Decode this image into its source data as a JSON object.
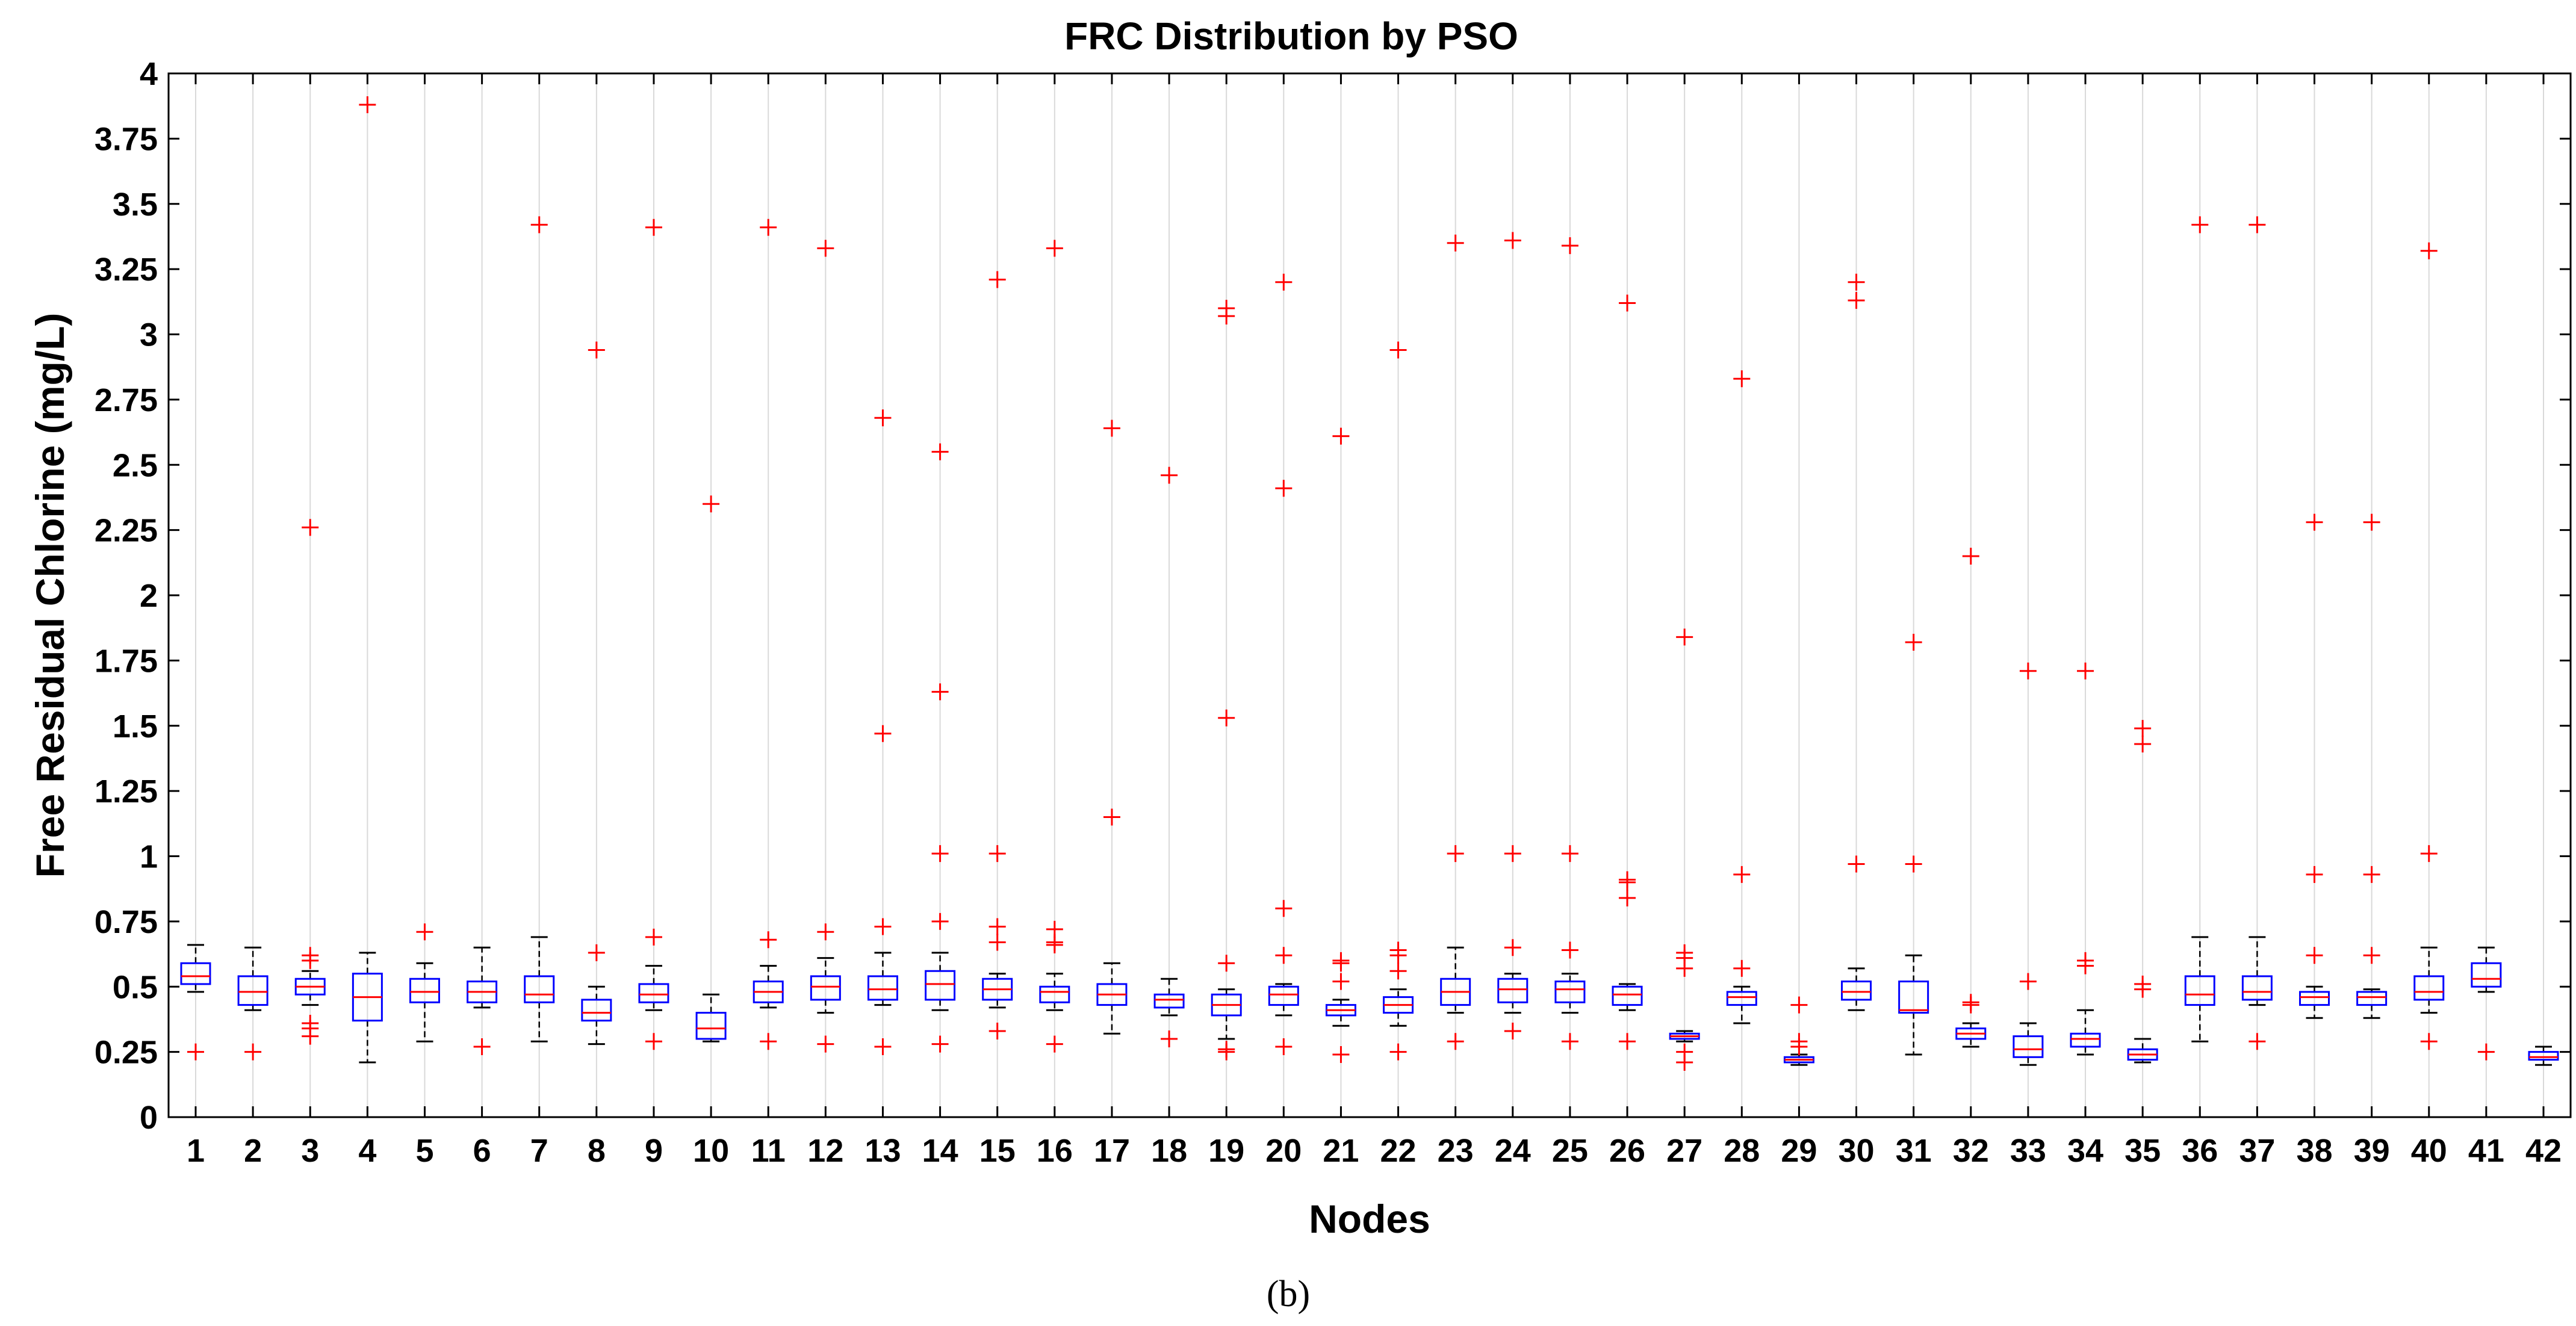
{
  "chart_data": {
    "type": "box",
    "title": "FRC Distribution by PSO",
    "xlabel": "Nodes",
    "ylabel": "Free Residual Chlorine (mg/L)",
    "ylim": [
      0,
      4
    ],
    "yticks": [
      0,
      0.25,
      0.5,
      0.75,
      1,
      1.25,
      1.5,
      1.75,
      2,
      2.25,
      2.5,
      2.75,
      3,
      3.25,
      3.5,
      3.75,
      4
    ],
    "ytick_labels": [
      "0",
      "0.25",
      "0.5",
      "0.75",
      "1",
      "1.25",
      "1.5",
      "1.75",
      "2",
      "2.25",
      "2.5",
      "2.75",
      "3",
      "3.25",
      "3.5",
      "3.75",
      "4"
    ],
    "grid": "x",
    "caption": "(b)",
    "colors": {
      "box": "#0000ff",
      "median": "#ff0000",
      "whisker": "#000000",
      "outlier": "#ff0000",
      "grid": "#d9d9d9"
    },
    "categories": [
      "1",
      "2",
      "3",
      "4",
      "5",
      "6",
      "7",
      "8",
      "9",
      "10",
      "11",
      "12",
      "13",
      "14",
      "15",
      "16",
      "17",
      "18",
      "19",
      "20",
      "21",
      "22",
      "23",
      "24",
      "25",
      "26",
      "27",
      "28",
      "29",
      "30",
      "31",
      "32",
      "33",
      "34",
      "35",
      "36",
      "37",
      "38",
      "39",
      "40",
      "41",
      "42"
    ],
    "boxes": [
      {
        "node": "1",
        "whislo": 0.48,
        "q1": 0.51,
        "med": 0.54,
        "q3": 0.59,
        "whishi": 0.66,
        "fliers": [
          0.25
        ]
      },
      {
        "node": "2",
        "whislo": 0.41,
        "q1": 0.43,
        "med": 0.48,
        "q3": 0.54,
        "whishi": 0.65,
        "fliers": [
          0.25
        ]
      },
      {
        "node": "3",
        "whislo": 0.43,
        "q1": 0.47,
        "med": 0.5,
        "q3": 0.53,
        "whishi": 0.56,
        "fliers": [
          0.36,
          0.34,
          0.31,
          0.6,
          0.62,
          2.26
        ]
      },
      {
        "node": "4",
        "whislo": 0.21,
        "q1": 0.37,
        "med": 0.46,
        "q3": 0.55,
        "whishi": 0.63,
        "fliers": [
          3.88
        ]
      },
      {
        "node": "5",
        "whislo": 0.29,
        "q1": 0.44,
        "med": 0.48,
        "q3": 0.53,
        "whishi": 0.59,
        "fliers": [
          0.71
        ]
      },
      {
        "node": "6",
        "whislo": 0.42,
        "q1": 0.44,
        "med": 0.48,
        "q3": 0.52,
        "whishi": 0.65,
        "fliers": [
          0.27
        ]
      },
      {
        "node": "7",
        "whislo": 0.29,
        "q1": 0.44,
        "med": 0.47,
        "q3": 0.54,
        "whishi": 0.69,
        "fliers": [
          3.42
        ]
      },
      {
        "node": "8",
        "whislo": 0.28,
        "q1": 0.37,
        "med": 0.4,
        "q3": 0.45,
        "whishi": 0.5,
        "fliers": [
          0.63,
          2.94
        ]
      },
      {
        "node": "9",
        "whislo": 0.41,
        "q1": 0.44,
        "med": 0.47,
        "q3": 0.51,
        "whishi": 0.58,
        "fliers": [
          0.29,
          0.69,
          3.41
        ]
      },
      {
        "node": "10",
        "whislo": 0.29,
        "q1": 0.3,
        "med": 0.34,
        "q3": 0.4,
        "whishi": 0.47,
        "fliers": [
          2.35
        ]
      },
      {
        "node": "11",
        "whislo": 0.42,
        "q1": 0.44,
        "med": 0.48,
        "q3": 0.52,
        "whishi": 0.58,
        "fliers": [
          0.29,
          0.68,
          3.41
        ]
      },
      {
        "node": "12",
        "whislo": 0.4,
        "q1": 0.45,
        "med": 0.5,
        "q3": 0.54,
        "whishi": 0.61,
        "fliers": [
          0.28,
          0.71,
          3.33
        ]
      },
      {
        "node": "13",
        "whislo": 0.43,
        "q1": 0.45,
        "med": 0.49,
        "q3": 0.54,
        "whishi": 0.63,
        "fliers": [
          0.27,
          0.73,
          1.47,
          2.68
        ]
      },
      {
        "node": "14",
        "whislo": 0.41,
        "q1": 0.45,
        "med": 0.51,
        "q3": 0.56,
        "whishi": 0.63,
        "fliers": [
          0.28,
          0.75,
          1.01,
          1.63,
          2.55
        ]
      },
      {
        "node": "15",
        "whislo": 0.42,
        "q1": 0.45,
        "med": 0.49,
        "q3": 0.53,
        "whishi": 0.55,
        "fliers": [
          0.33,
          0.67,
          0.73,
          1.01,
          3.21
        ]
      },
      {
        "node": "16",
        "whislo": 0.41,
        "q1": 0.44,
        "med": 0.48,
        "q3": 0.5,
        "whishi": 0.55,
        "fliers": [
          0.28,
          0.66,
          0.67,
          0.72,
          3.33
        ]
      },
      {
        "node": "17",
        "whislo": 0.32,
        "q1": 0.43,
        "med": 0.47,
        "q3": 0.51,
        "whishi": 0.59,
        "fliers": [
          1.15,
          2.64
        ]
      },
      {
        "node": "18",
        "whislo": 0.39,
        "q1": 0.42,
        "med": 0.45,
        "q3": 0.47,
        "whishi": 0.53,
        "fliers": [
          0.3,
          2.46
        ]
      },
      {
        "node": "19",
        "whislo": 0.3,
        "q1": 0.39,
        "med": 0.43,
        "q3": 0.47,
        "whishi": 0.49,
        "fliers": [
          0.25,
          0.26,
          0.59,
          1.53,
          3.07,
          3.1
        ]
      },
      {
        "node": "20",
        "whislo": 0.39,
        "q1": 0.43,
        "med": 0.47,
        "q3": 0.5,
        "whishi": 0.51,
        "fliers": [
          0.27,
          0.62,
          0.8,
          2.41,
          3.2
        ]
      },
      {
        "node": "21",
        "whislo": 0.35,
        "q1": 0.39,
        "med": 0.41,
        "q3": 0.43,
        "whishi": 0.45,
        "fliers": [
          0.24,
          0.52,
          0.59,
          0.6,
          2.61
        ]
      },
      {
        "node": "22",
        "whislo": 0.35,
        "q1": 0.4,
        "med": 0.43,
        "q3": 0.46,
        "whishi": 0.49,
        "fliers": [
          0.25,
          0.56,
          0.62,
          0.64,
          2.94
        ]
      },
      {
        "node": "23",
        "whislo": 0.4,
        "q1": 0.43,
        "med": 0.48,
        "q3": 0.53,
        "whishi": 0.65,
        "fliers": [
          0.29,
          1.01,
          3.35
        ]
      },
      {
        "node": "24",
        "whislo": 0.4,
        "q1": 0.44,
        "med": 0.49,
        "q3": 0.53,
        "whishi": 0.55,
        "fliers": [
          0.33,
          0.65,
          1.01,
          3.36
        ]
      },
      {
        "node": "25",
        "whislo": 0.4,
        "q1": 0.44,
        "med": 0.49,
        "q3": 0.52,
        "whishi": 0.55,
        "fliers": [
          0.29,
          0.64,
          1.01,
          3.34
        ]
      },
      {
        "node": "26",
        "whislo": 0.41,
        "q1": 0.43,
        "med": 0.47,
        "q3": 0.5,
        "whishi": 0.51,
        "fliers": [
          0.29,
          0.84,
          0.9,
          0.91,
          3.12
        ]
      },
      {
        "node": "27",
        "whislo": 0.29,
        "q1": 0.3,
        "med": 0.31,
        "q3": 0.32,
        "whishi": 0.33,
        "fliers": [
          0.21,
          0.25,
          0.57,
          0.61,
          0.63,
          1.84
        ]
      },
      {
        "node": "28",
        "whislo": 0.36,
        "q1": 0.43,
        "med": 0.46,
        "q3": 0.48,
        "whishi": 0.5,
        "fliers": [
          0.57,
          0.93,
          2.83
        ]
      },
      {
        "node": "29",
        "whislo": 0.2,
        "q1": 0.21,
        "med": 0.22,
        "q3": 0.23,
        "whishi": 0.24,
        "fliers": [
          0.27,
          0.29,
          0.43
        ]
      },
      {
        "node": "30",
        "whislo": 0.41,
        "q1": 0.45,
        "med": 0.48,
        "q3": 0.52,
        "whishi": 0.57,
        "fliers": [
          0.97,
          3.13,
          3.2
        ]
      },
      {
        "node": "31",
        "whislo": 0.24,
        "q1": 0.4,
        "med": 0.41,
        "q3": 0.52,
        "whishi": 0.62,
        "fliers": [
          0.97,
          1.82
        ]
      },
      {
        "node": "32",
        "whislo": 0.27,
        "q1": 0.3,
        "med": 0.32,
        "q3": 0.34,
        "whishi": 0.36,
        "fliers": [
          0.43,
          0.44,
          2.15
        ]
      },
      {
        "node": "33",
        "whislo": 0.2,
        "q1": 0.23,
        "med": 0.26,
        "q3": 0.31,
        "whishi": 0.36,
        "fliers": [
          0.52,
          1.71
        ]
      },
      {
        "node": "34",
        "whislo": 0.24,
        "q1": 0.27,
        "med": 0.3,
        "q3": 0.32,
        "whishi": 0.41,
        "fliers": [
          0.58,
          0.6,
          1.71
        ]
      },
      {
        "node": "35",
        "whislo": 0.21,
        "q1": 0.22,
        "med": 0.24,
        "q3": 0.26,
        "whishi": 0.3,
        "fliers": [
          0.49,
          0.51,
          1.43,
          1.49
        ]
      },
      {
        "node": "36",
        "whislo": 0.29,
        "q1": 0.43,
        "med": 0.47,
        "q3": 0.54,
        "whishi": 0.69,
        "fliers": [
          3.42
        ]
      },
      {
        "node": "37",
        "whislo": 0.43,
        "q1": 0.45,
        "med": 0.48,
        "q3": 0.54,
        "whishi": 0.69,
        "fliers": [
          0.29,
          3.42
        ]
      },
      {
        "node": "38",
        "whislo": 0.38,
        "q1": 0.43,
        "med": 0.46,
        "q3": 0.48,
        "whishi": 0.5,
        "fliers": [
          0.62,
          0.93,
          2.28
        ]
      },
      {
        "node": "39",
        "whislo": 0.38,
        "q1": 0.43,
        "med": 0.46,
        "q3": 0.48,
        "whishi": 0.49,
        "fliers": [
          0.62,
          0.93,
          2.28
        ]
      },
      {
        "node": "40",
        "whislo": 0.4,
        "q1": 0.45,
        "med": 0.48,
        "q3": 0.54,
        "whishi": 0.65,
        "fliers": [
          0.29,
          1.01,
          3.32
        ]
      },
      {
        "node": "41",
        "whislo": 0.48,
        "q1": 0.5,
        "med": 0.53,
        "q3": 0.59,
        "whishi": 0.65,
        "fliers": [
          0.25
        ]
      },
      {
        "node": "42",
        "whislo": 0.2,
        "q1": 0.22,
        "med": 0.23,
        "q3": 0.25,
        "whishi": 0.27,
        "fliers": []
      }
    ]
  }
}
